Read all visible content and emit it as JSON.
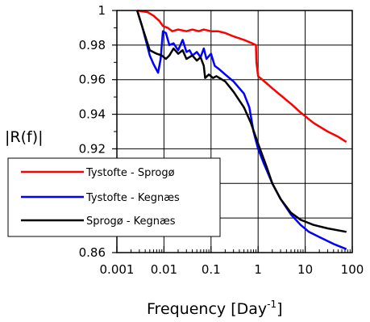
{
  "chart_data": {
    "type": "line",
    "xscale": "log",
    "xlim": [
      0.001,
      100
    ],
    "ylim": [
      0.86,
      1.0
    ],
    "x_ticks": [
      0.001,
      0.01,
      0.1,
      1,
      10,
      100
    ],
    "x_tick_labels": [
      "0.001",
      "0.01",
      "0.1",
      "1",
      "10",
      "100"
    ],
    "y_ticks": [
      0.86,
      0.88,
      0.9,
      0.92,
      0.94,
      0.96,
      0.98,
      1.0
    ],
    "y_tick_labels": [
      "0.86",
      "",
      "",
      "0.92",
      "0.94",
      "0.96",
      "0.98",
      "1"
    ],
    "xlabel": "Frequency [Day",
    "xlabel_sup": "-1",
    "xlabel_end": "]",
    "ylabel": "|R(f)|",
    "grid": true,
    "legend_position": "left",
    "series": [
      {
        "name": "Tystofte - Sprogø",
        "color": "#ff0000",
        "points": [
          [
            0.0027,
            1.0
          ],
          [
            0.0045,
            0.999
          ],
          [
            0.006,
            0.997
          ],
          [
            0.008,
            0.994
          ],
          [
            0.0095,
            0.991
          ],
          [
            0.012,
            0.99
          ],
          [
            0.015,
            0.988
          ],
          [
            0.02,
            0.989
          ],
          [
            0.03,
            0.988
          ],
          [
            0.04,
            0.989
          ],
          [
            0.055,
            0.988
          ],
          [
            0.07,
            0.989
          ],
          [
            0.1,
            0.988
          ],
          [
            0.14,
            0.988
          ],
          [
            0.2,
            0.987
          ],
          [
            0.3,
            0.985
          ],
          [
            0.5,
            0.983
          ],
          [
            0.75,
            0.981
          ],
          [
            0.9,
            0.98
          ],
          [
            0.92,
            0.97
          ],
          [
            1.0,
            0.962
          ],
          [
            1.5,
            0.958
          ],
          [
            2,
            0.955
          ],
          [
            3,
            0.951
          ],
          [
            5,
            0.946
          ],
          [
            8,
            0.941
          ],
          [
            15,
            0.935
          ],
          [
            30,
            0.93
          ],
          [
            50,
            0.927
          ],
          [
            75,
            0.924
          ]
        ]
      },
      {
        "name": "Tystofte - Kegnæs",
        "color": "#0000ff",
        "points": [
          [
            0.0027,
            1.0
          ],
          [
            0.0035,
            0.99
          ],
          [
            0.005,
            0.974
          ],
          [
            0.006,
            0.969
          ],
          [
            0.0075,
            0.964
          ],
          [
            0.0085,
            0.972
          ],
          [
            0.0095,
            0.988
          ],
          [
            0.011,
            0.987
          ],
          [
            0.013,
            0.98
          ],
          [
            0.016,
            0.981
          ],
          [
            0.02,
            0.977
          ],
          [
            0.025,
            0.983
          ],
          [
            0.03,
            0.976
          ],
          [
            0.035,
            0.977
          ],
          [
            0.04,
            0.974
          ],
          [
            0.05,
            0.976
          ],
          [
            0.06,
            0.973
          ],
          [
            0.07,
            0.978
          ],
          [
            0.08,
            0.972
          ],
          [
            0.1,
            0.975
          ],
          [
            0.12,
            0.968
          ],
          [
            0.15,
            0.966
          ],
          [
            0.2,
            0.963
          ],
          [
            0.3,
            0.959
          ],
          [
            0.5,
            0.952
          ],
          [
            0.65,
            0.944
          ],
          [
            0.8,
            0.93
          ],
          [
            1.0,
            0.92
          ],
          [
            1.3,
            0.912
          ],
          [
            2,
            0.9
          ],
          [
            3,
            0.891
          ],
          [
            5,
            0.882
          ],
          [
            8,
            0.876
          ],
          [
            12,
            0.872
          ],
          [
            20,
            0.869
          ],
          [
            40,
            0.865
          ],
          [
            75,
            0.862
          ]
        ]
      },
      {
        "name": "Sprogø  - Kegnæs",
        "color": "#000000",
        "points": [
          [
            0.0027,
            1.0
          ],
          [
            0.0035,
            0.99
          ],
          [
            0.005,
            0.977
          ],
          [
            0.007,
            0.975
          ],
          [
            0.009,
            0.974
          ],
          [
            0.011,
            0.972
          ],
          [
            0.013,
            0.974
          ],
          [
            0.016,
            0.978
          ],
          [
            0.02,
            0.975
          ],
          [
            0.025,
            0.977
          ],
          [
            0.03,
            0.972
          ],
          [
            0.04,
            0.974
          ],
          [
            0.05,
            0.971
          ],
          [
            0.06,
            0.973
          ],
          [
            0.07,
            0.968
          ],
          [
            0.075,
            0.961
          ],
          [
            0.09,
            0.963
          ],
          [
            0.11,
            0.961
          ],
          [
            0.13,
            0.962
          ],
          [
            0.2,
            0.959
          ],
          [
            0.3,
            0.953
          ],
          [
            0.5,
            0.944
          ],
          [
            0.7,
            0.935
          ],
          [
            1.0,
            0.923
          ],
          [
            1.5,
            0.91
          ],
          [
            2,
            0.9
          ],
          [
            3,
            0.891
          ],
          [
            5,
            0.883
          ],
          [
            8,
            0.879
          ],
          [
            15,
            0.876
          ],
          [
            30,
            0.874
          ],
          [
            75,
            0.872
          ]
        ]
      }
    ]
  }
}
